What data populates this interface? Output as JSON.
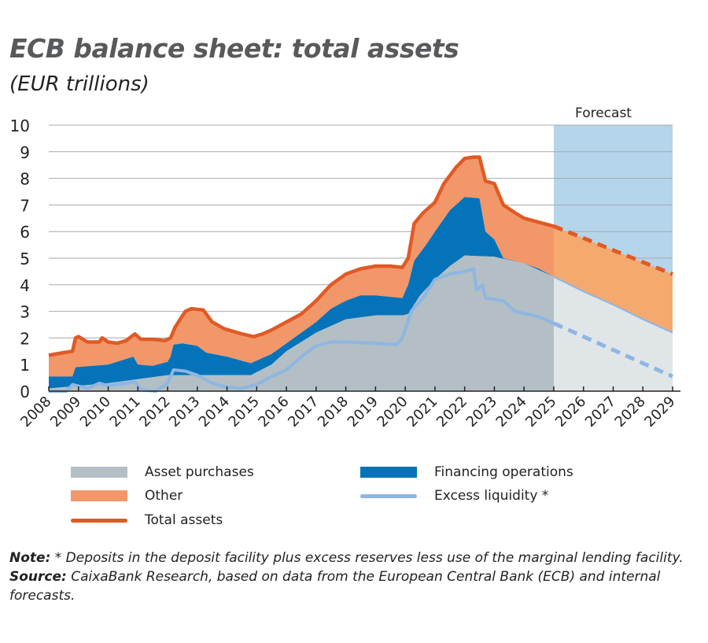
{
  "title": "ECB balance sheet: total assets",
  "subtitle": "(EUR trillions)",
  "forecast_label": "Forecast",
  "note_label": "Note:",
  "note_text": " * Deposits in the deposit facility plus excess reserves less use of the marginal lending facility.",
  "source_label": "Source:",
  "source_text": " CaixaBank Research, based on data from the European Central Bank (ECB) and internal forecasts.",
  "colors": {
    "asset_purchases": "#b3bfc4",
    "asset_purchases_forecast": "#e0e5e8",
    "financing": "#0573b9",
    "other": "#f2976a",
    "other_forecast": "#f4aa6e",
    "total": "#e05a25",
    "excess": "#8db6e3",
    "forecast_band": "#b5d5eb"
  },
  "chart_data": {
    "type": "area",
    "title": "ECB balance sheet: total assets",
    "ylabel": "EUR trillions",
    "ylim": [
      0,
      10
    ],
    "yticks": [
      "0",
      "1",
      "2",
      "3",
      "4",
      "5",
      "6",
      "7",
      "8",
      "9",
      "10"
    ],
    "xlim": [
      2008,
      2029
    ],
    "xticks": [
      "2008",
      "2009",
      "2010",
      "2011",
      "2012",
      "2013",
      "2014",
      "2015",
      "2016",
      "2017",
      "2018",
      "2019",
      "2020",
      "2021",
      "2022",
      "2023",
      "2024",
      "2025",
      "2026",
      "2027",
      "2028",
      "2029"
    ],
    "grid": true,
    "forecast_range": [
      2025,
      2029
    ],
    "legend": [
      "Asset purchases",
      "Financing operations",
      "Other",
      "Excess liquidity *",
      "Total assets"
    ],
    "legend_position": "bottom",
    "series": {
      "asset_purchases": [
        [
          2008,
          0.1
        ],
        [
          2009,
          0.2
        ],
        [
          2010,
          0.3
        ],
        [
          2011,
          0.45
        ],
        [
          2012,
          0.6
        ],
        [
          2013,
          0.6
        ],
        [
          2014,
          0.6
        ],
        [
          2014.8,
          0.6
        ],
        [
          2015.5,
          1.0
        ],
        [
          2016,
          1.5
        ],
        [
          2017,
          2.2
        ],
        [
          2018,
          2.7
        ],
        [
          2019,
          2.85
        ],
        [
          2019.9,
          2.85
        ],
        [
          2020.1,
          2.9
        ],
        [
          2020.5,
          3.6
        ],
        [
          2021,
          4.2
        ],
        [
          2021.5,
          4.7
        ],
        [
          2022,
          5.1
        ],
        [
          2023,
          5.05
        ],
        [
          2024,
          4.8
        ],
        [
          2025,
          4.3
        ]
      ],
      "asset_purchases_forecast": [
        [
          2025,
          4.3
        ],
        [
          2026,
          3.75
        ],
        [
          2027,
          3.25
        ],
        [
          2028,
          2.7
        ],
        [
          2029,
          2.2
        ]
      ],
      "financing_top": [
        [
          2008,
          0.55
        ],
        [
          2008.8,
          0.55
        ],
        [
          2008.9,
          0.9
        ],
        [
          2010,
          1.0
        ],
        [
          2010.85,
          1.3
        ],
        [
          2011,
          1.0
        ],
        [
          2011.5,
          0.95
        ],
        [
          2012,
          1.1
        ],
        [
          2012.1,
          1.3
        ],
        [
          2012.2,
          1.75
        ],
        [
          2012.5,
          1.8
        ],
        [
          2013,
          1.7
        ],
        [
          2013.3,
          1.45
        ],
        [
          2014,
          1.3
        ],
        [
          2014.8,
          1.05
        ],
        [
          2015.5,
          1.4
        ],
        [
          2016,
          1.8
        ],
        [
          2017,
          2.6
        ],
        [
          2017.5,
          3.1
        ],
        [
          2018,
          3.4
        ],
        [
          2018.5,
          3.6
        ],
        [
          2019,
          3.6
        ],
        [
          2019.9,
          3.5
        ],
        [
          2020.1,
          4.0
        ],
        [
          2020.3,
          4.9
        ],
        [
          2020.7,
          5.5
        ],
        [
          2021,
          6.0
        ],
        [
          2021.5,
          6.8
        ],
        [
          2022,
          7.3
        ],
        [
          2022.5,
          7.25
        ],
        [
          2022.7,
          6.0
        ],
        [
          2023,
          5.7
        ],
        [
          2023.3,
          5.0
        ],
        [
          2024,
          4.8
        ],
        [
          2024.5,
          4.6
        ],
        [
          2025,
          4.3
        ]
      ],
      "total_assets": [
        [
          2008,
          1.35
        ],
        [
          2008.5,
          1.45
        ],
        [
          2008.8,
          1.5
        ],
        [
          2008.9,
          2.0
        ],
        [
          2009,
          2.05
        ],
        [
          2009.3,
          1.85
        ],
        [
          2009.7,
          1.85
        ],
        [
          2009.8,
          2.0
        ],
        [
          2010,
          1.85
        ],
        [
          2010.3,
          1.8
        ],
        [
          2010.6,
          1.9
        ],
        [
          2010.9,
          2.15
        ],
        [
          2011.1,
          1.95
        ],
        [
          2011.5,
          1.95
        ],
        [
          2011.9,
          1.9
        ],
        [
          2012.1,
          2.0
        ],
        [
          2012.25,
          2.4
        ],
        [
          2012.45,
          2.75
        ],
        [
          2012.6,
          3.0
        ],
        [
          2012.8,
          3.1
        ],
        [
          2013.2,
          3.05
        ],
        [
          2013.5,
          2.6
        ],
        [
          2013.9,
          2.35
        ],
        [
          2014.5,
          2.15
        ],
        [
          2014.9,
          2.05
        ],
        [
          2015.2,
          2.15
        ],
        [
          2015.5,
          2.3
        ],
        [
          2016,
          2.6
        ],
        [
          2016.5,
          2.9
        ],
        [
          2017,
          3.4
        ],
        [
          2017.5,
          4.0
        ],
        [
          2018,
          4.4
        ],
        [
          2018.5,
          4.6
        ],
        [
          2019,
          4.7
        ],
        [
          2019.5,
          4.7
        ],
        [
          2019.9,
          4.65
        ],
        [
          2020.1,
          5.0
        ],
        [
          2020.3,
          6.3
        ],
        [
          2020.6,
          6.7
        ],
        [
          2021,
          7.1
        ],
        [
          2021.3,
          7.8
        ],
        [
          2021.7,
          8.4
        ],
        [
          2022,
          8.75
        ],
        [
          2022.3,
          8.8
        ],
        [
          2022.5,
          8.8
        ],
        [
          2022.7,
          7.9
        ],
        [
          2023,
          7.8
        ],
        [
          2023.3,
          7.0
        ],
        [
          2023.7,
          6.7
        ],
        [
          2024,
          6.5
        ],
        [
          2024.5,
          6.35
        ],
        [
          2025,
          6.2
        ]
      ],
      "total_assets_forecast": [
        [
          2025,
          6.2
        ],
        [
          2026,
          5.75
        ],
        [
          2027,
          5.3
        ],
        [
          2028,
          4.85
        ],
        [
          2029,
          4.4
        ]
      ],
      "excess_liquidity": [
        [
          2008,
          0.0
        ],
        [
          2008.6,
          0.0
        ],
        [
          2008.8,
          0.25
        ],
        [
          2009.3,
          0.1
        ],
        [
          2009.7,
          0.3
        ],
        [
          2010,
          0.2
        ],
        [
          2010.6,
          0.3
        ],
        [
          2010.9,
          0.35
        ],
        [
          2011.1,
          0.05
        ],
        [
          2011.6,
          0.0
        ],
        [
          2012,
          0.3
        ],
        [
          2012.2,
          0.8
        ],
        [
          2012.6,
          0.75
        ],
        [
          2013,
          0.6
        ],
        [
          2013.5,
          0.3
        ],
        [
          2014,
          0.15
        ],
        [
          2014.5,
          0.1
        ],
        [
          2015,
          0.25
        ],
        [
          2015.5,
          0.55
        ],
        [
          2016,
          0.8
        ],
        [
          2016.5,
          1.3
        ],
        [
          2017,
          1.7
        ],
        [
          2017.5,
          1.85
        ],
        [
          2018,
          1.85
        ],
        [
          2019,
          1.8
        ],
        [
          2019.7,
          1.75
        ],
        [
          2019.9,
          2.0
        ],
        [
          2020.2,
          3.0
        ],
        [
          2020.6,
          3.5
        ],
        [
          2021,
          4.2
        ],
        [
          2021.5,
          4.4
        ],
        [
          2022,
          4.5
        ],
        [
          2022.3,
          4.6
        ],
        [
          2022.4,
          3.8
        ],
        [
          2022.6,
          4.0
        ],
        [
          2022.7,
          3.5
        ],
        [
          2023.3,
          3.4
        ],
        [
          2023.7,
          3.0
        ],
        [
          2024.5,
          2.8
        ],
        [
          2025,
          2.55
        ]
      ],
      "excess_liquidity_forecast": [
        [
          2025,
          2.55
        ],
        [
          2026,
          2.05
        ],
        [
          2027,
          1.55
        ],
        [
          2028,
          1.05
        ],
        [
          2029,
          0.55
        ]
      ]
    }
  }
}
